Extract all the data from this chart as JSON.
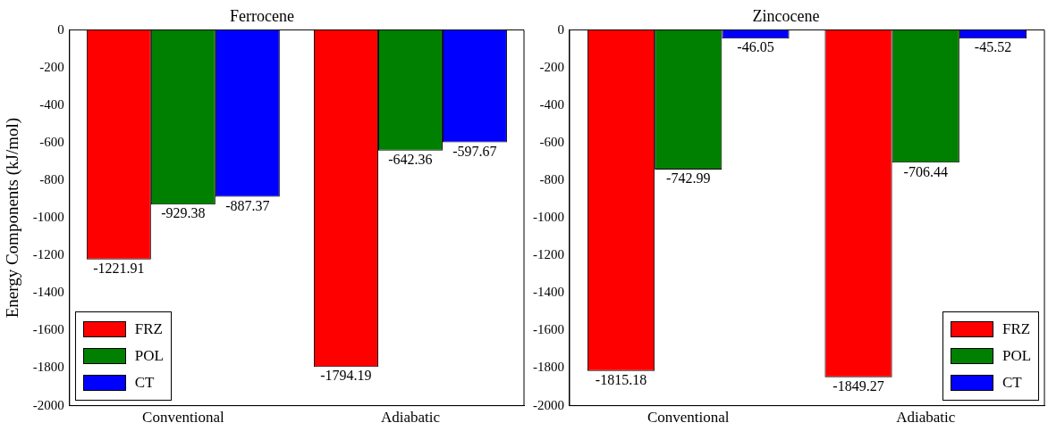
{
  "chart_data": [
    {
      "type": "bar",
      "title": "Ferrocene",
      "ylabel": "Energy Components (kJ/mol)",
      "categories": [
        "Conventional",
        "Adiabatic"
      ],
      "series": [
        {
          "name": "FRZ",
          "color": "#ff0000",
          "values": [
            -1221.91,
            -1794.19
          ]
        },
        {
          "name": "POL",
          "color": "#008000",
          "values": [
            -929.38,
            -642.36
          ]
        },
        {
          "name": "CT",
          "color": "#0000ff",
          "values": [
            -887.37,
            -597.67
          ]
        }
      ],
      "ylim": [
        -2000,
        0
      ],
      "yticks": [
        -2000,
        -1800,
        -1600,
        -1400,
        -1200,
        -1000,
        -800,
        -600,
        -400,
        -200,
        0
      ],
      "grid": false,
      "legend": "bottom left",
      "data_labels": true
    },
    {
      "type": "bar",
      "title": "Zincocene",
      "categories": [
        "Conventional",
        "Adiabatic"
      ],
      "series": [
        {
          "name": "FRZ",
          "color": "#ff0000",
          "values": [
            -1815.18,
            -1849.27
          ]
        },
        {
          "name": "POL",
          "color": "#008000",
          "values": [
            -742.99,
            -706.44
          ]
        },
        {
          "name": "CT",
          "color": "#0000ff",
          "values": [
            -46.05,
            -45.52
          ]
        }
      ],
      "ylim": [
        -2000,
        0
      ],
      "yticks": [
        -2000,
        -1800,
        -1600,
        -1400,
        -1200,
        -1000,
        -800,
        -600,
        -400,
        -200,
        0
      ],
      "grid": false,
      "legend": "bottom right",
      "data_labels": true
    }
  ]
}
